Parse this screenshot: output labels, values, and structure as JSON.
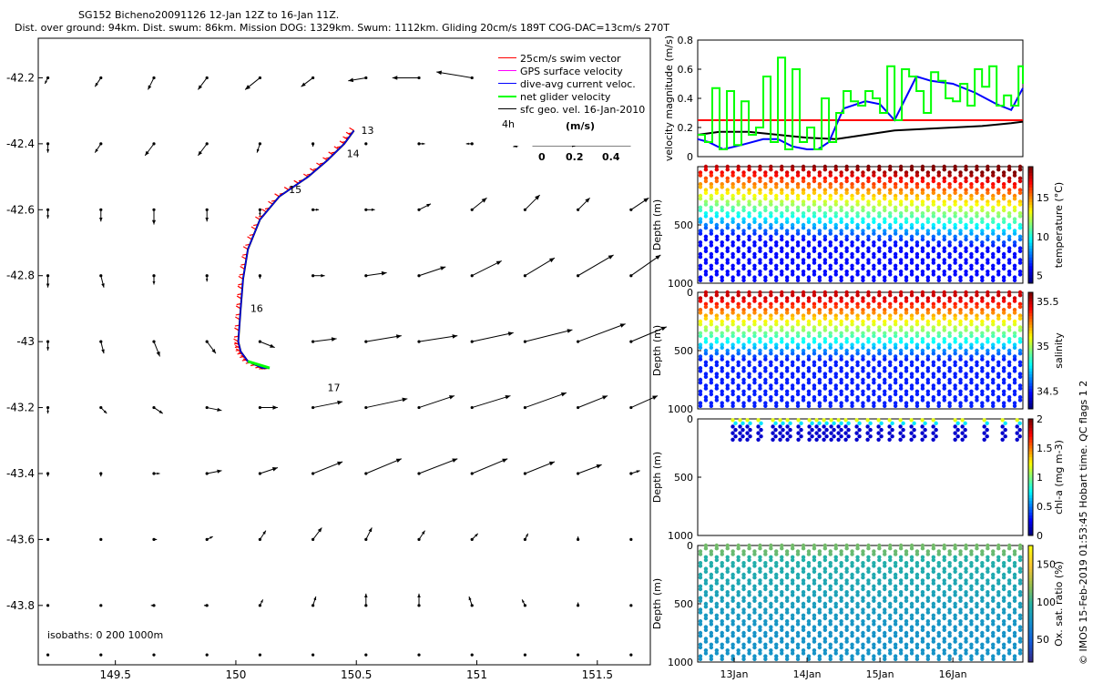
{
  "title_line1": "SG152 Bicheno20091126 12-Jan 12Z to 16-Jan 11Z.",
  "title_line2": "Dist. over ground: 94km. Dist. swum: 86km. Mission DOG: 1329km. Swum: 1112km. Gliding 20cm/s 189T COG-DAC=13cm/s 270T",
  "legend": {
    "items": [
      {
        "label": "25cm/s swim vector",
        "color": "#ff0000"
      },
      {
        "label": "GPS surface velocity",
        "color": "#ff00ff"
      },
      {
        "label": "dive-avg current veloc.",
        "color": "#0000ff"
      },
      {
        "label": "net glider velocity",
        "color": "#00ff00"
      },
      {
        "label": "sfc geo. vel. 16-Jan-2010",
        "color": "#000000"
      }
    ],
    "scale_label": "4h",
    "colorbar_title": "(m/s)",
    "colorbar_ticks": [
      "0",
      "0.2",
      "0.4"
    ]
  },
  "isobaths": "isobaths: 0   200  1000m",
  "watermark": "© IMOS 15-Feb-2019 01:53:45 Hobart time. QC flags 1  2",
  "chart_data": [
    {
      "type": "scatter",
      "name": "map",
      "x_ticks": [
        "149.5",
        "150",
        "150.5",
        "151",
        "151.5"
      ],
      "y_ticks": [
        "-42.2",
        "-42.4",
        "-42.6",
        "-42.8",
        "-43",
        "-43.2",
        "-43.4",
        "-43.6",
        "-43.8"
      ],
      "xlim": [
        149.18,
        151.72
      ],
      "ylim": [
        -43.98,
        -42.08
      ],
      "day_labels": [
        {
          "text": "13",
          "x": 150.52,
          "y": -42.37
        },
        {
          "text": "14",
          "x": 150.46,
          "y": -42.44
        },
        {
          "text": "15",
          "x": 150.22,
          "y": -42.55
        },
        {
          "text": "16",
          "x": 150.06,
          "y": -42.91
        },
        {
          "text": "17",
          "x": 150.38,
          "y": -43.15
        }
      ],
      "track": {
        "lon": [
          150.49,
          150.45,
          150.38,
          150.3,
          150.18,
          150.1,
          150.05,
          150.03,
          150.02,
          150.01,
          150.02,
          150.05,
          150.11,
          150.14
        ],
        "lat": [
          -42.36,
          -42.4,
          -42.45,
          -42.5,
          -42.56,
          -42.63,
          -42.72,
          -42.81,
          -42.9,
          -43.0,
          -43.03,
          -43.06,
          -43.08,
          -43.08
        ]
      },
      "geo_vectors": {
        "lon": [
          149.22,
          149.44,
          149.66,
          149.88,
          150.1,
          150.32,
          150.54,
          150.76,
          150.98,
          151.2,
          151.42,
          151.64
        ],
        "lat": [
          -42.2,
          -42.4,
          -42.6,
          -42.8,
          -43.0,
          -43.2,
          -43.4,
          -43.6,
          -43.8,
          -43.95
        ],
        "u": [
          [
            -0.01,
            -0.02,
            -0.02,
            -0.03,
            -0.05,
            -0.04,
            -0.06,
            -0.09,
            -0.12,
            -0.05,
            -0.01,
            0.0
          ],
          [
            0.0,
            -0.02,
            -0.03,
            -0.03,
            -0.01,
            0.0,
            0.0,
            0.02,
            -0.02,
            -0.04,
            -0.02,
            0.0
          ],
          [
            0.0,
            0.0,
            0.0,
            0.0,
            0.0,
            0.02,
            0.03,
            0.04,
            0.05,
            0.05,
            0.04,
            0.06
          ],
          [
            0.0,
            0.01,
            0.0,
            0.0,
            0.0,
            0.04,
            0.07,
            0.09,
            0.1,
            0.1,
            0.12,
            0.1
          ],
          [
            0.0,
            0.01,
            0.02,
            0.03,
            0.05,
            0.08,
            0.12,
            0.13,
            0.14,
            0.16,
            0.16,
            0.12
          ],
          [
            0.0,
            0.02,
            0.03,
            0.05,
            0.06,
            0.1,
            0.14,
            0.12,
            0.13,
            0.14,
            0.1,
            0.09
          ],
          [
            0.0,
            0.0,
            0.02,
            0.05,
            0.06,
            0.1,
            0.12,
            0.13,
            0.12,
            0.1,
            0.08,
            0.03
          ],
          [
            0.0,
            0.0,
            0.01,
            0.02,
            0.02,
            0.03,
            0.02,
            0.02,
            0.02,
            0.01,
            0.0,
            0.0
          ],
          [
            0.0,
            0.0,
            -0.01,
            -0.01,
            0.01,
            0.01,
            0.0,
            0.0,
            -0.01,
            -0.01,
            0.0,
            0.0
          ],
          [
            0.0,
            0.0,
            0.0,
            0.0,
            0.0,
            0.0,
            0.0,
            0.0,
            0.0,
            0.0,
            0.0,
            0.0
          ]
        ],
        "v": [
          [
            -0.02,
            -0.03,
            -0.04,
            -0.04,
            -0.04,
            -0.03,
            -0.01,
            0.0,
            0.02,
            0.02,
            0.0,
            0.0
          ],
          [
            -0.03,
            -0.03,
            -0.04,
            -0.04,
            -0.03,
            -0.01,
            0.0,
            0.0,
            0.0,
            -0.01,
            -0.01,
            0.0
          ],
          [
            -0.03,
            -0.04,
            -0.05,
            -0.04,
            -0.02,
            0.0,
            0.0,
            0.02,
            0.04,
            0.05,
            0.04,
            0.04
          ],
          [
            -0.04,
            -0.04,
            -0.03,
            -0.02,
            -0.01,
            0.0,
            0.01,
            0.03,
            0.05,
            0.06,
            0.07,
            0.07
          ],
          [
            -0.03,
            -0.04,
            -0.05,
            -0.04,
            -0.02,
            0.01,
            0.02,
            0.02,
            0.03,
            0.04,
            0.06,
            0.05
          ],
          [
            -0.02,
            -0.02,
            -0.02,
            -0.01,
            0.0,
            0.02,
            0.03,
            0.04,
            0.04,
            0.05,
            0.04,
            0.04
          ],
          [
            -0.01,
            -0.01,
            0.0,
            0.01,
            0.02,
            0.04,
            0.05,
            0.05,
            0.05,
            0.04,
            0.03,
            0.01
          ],
          [
            0.0,
            0.0,
            0.0,
            0.01,
            0.03,
            0.04,
            0.04,
            0.03,
            0.02,
            0.02,
            0.01,
            0.0
          ],
          [
            0.0,
            0.0,
            0.0,
            0.0,
            0.02,
            0.03,
            0.04,
            0.04,
            0.03,
            0.02,
            0.01,
            0.0
          ],
          [
            0.0,
            0.0,
            0.0,
            0.0,
            0.0,
            0.0,
            0.0,
            0.0,
            0.0,
            0.0,
            0.0,
            0.0
          ]
        ]
      }
    },
    {
      "type": "line",
      "name": "velocity",
      "ylabel": "velocity magnitude (m/s)",
      "ylim": [
        0,
        0.8
      ],
      "y_ticks": [
        "0",
        "0.2",
        "0.4",
        "0.6",
        "0.8"
      ],
      "xlim": [
        12.5,
        16.96
      ],
      "series": [
        {
          "color": "#ff0000",
          "x": [
            12.5,
            16.96
          ],
          "y": [
            0.25,
            0.25
          ]
        },
        {
          "color": "#000000",
          "x": [
            12.5,
            12.8,
            13.2,
            13.6,
            14.0,
            14.4,
            14.8,
            15.2,
            15.6,
            16.0,
            16.4,
            16.8,
            16.96
          ],
          "y": [
            0.15,
            0.17,
            0.17,
            0.15,
            0.13,
            0.12,
            0.15,
            0.18,
            0.19,
            0.2,
            0.21,
            0.23,
            0.24
          ]
        },
        {
          "color": "#0000ff",
          "x": [
            12.5,
            12.65,
            12.85,
            13.1,
            13.4,
            13.6,
            13.8,
            14.0,
            14.15,
            14.3,
            14.5,
            14.8,
            15.0,
            15.2,
            15.35,
            15.5,
            15.7,
            16.0,
            16.3,
            16.6,
            16.8,
            16.96
          ],
          "y": [
            0.12,
            0.1,
            0.05,
            0.08,
            0.12,
            0.12,
            0.07,
            0.05,
            0.05,
            0.1,
            0.33,
            0.38,
            0.36,
            0.25,
            0.4,
            0.55,
            0.52,
            0.5,
            0.44,
            0.36,
            0.32,
            0.47
          ]
        },
        {
          "color": "#00ff00",
          "x": [
            12.5,
            12.6,
            12.7,
            12.8,
            12.9,
            13.0,
            13.1,
            13.2,
            13.3,
            13.4,
            13.5,
            13.6,
            13.7,
            13.8,
            13.9,
            14.0,
            14.1,
            14.2,
            14.3,
            14.4,
            14.5,
            14.6,
            14.7,
            14.8,
            14.9,
            15.0,
            15.1,
            15.2,
            15.3,
            15.4,
            15.5,
            15.6,
            15.7,
            15.8,
            15.9,
            16.0,
            16.1,
            16.2,
            16.3,
            16.4,
            16.5,
            16.6,
            16.7,
            16.8,
            16.9,
            16.96
          ],
          "y": [
            0.15,
            0.1,
            0.47,
            0.05,
            0.45,
            0.08,
            0.38,
            0.15,
            0.2,
            0.55,
            0.1,
            0.68,
            0.05,
            0.6,
            0.1,
            0.2,
            0.05,
            0.4,
            0.1,
            0.3,
            0.45,
            0.38,
            0.35,
            0.45,
            0.4,
            0.3,
            0.62,
            0.25,
            0.6,
            0.55,
            0.45,
            0.3,
            0.58,
            0.52,
            0.4,
            0.38,
            0.5,
            0.35,
            0.6,
            0.48,
            0.62,
            0.35,
            0.42,
            0.35,
            0.62,
            0.5
          ]
        }
      ]
    },
    {
      "type": "scatter",
      "name": "temperature",
      "ylabel": "Depth (m)",
      "colorbar_label": "temperature (°C)",
      "colorbar_ticks": [
        "5",
        "10",
        "15"
      ],
      "clim": [
        4,
        19
      ],
      "ylim": [
        0,
        1000
      ],
      "y_ticks": [
        "500",
        "1000"
      ],
      "profiles": 30,
      "surface_value": 18,
      "deep_value": 6
    },
    {
      "type": "scatter",
      "name": "salinity",
      "ylabel": "Depth (m)",
      "colorbar_label": "salinity",
      "colorbar_ticks": [
        "34.5",
        "35",
        "35.5"
      ],
      "clim": [
        34.3,
        35.6
      ],
      "ylim": [
        0,
        1000
      ],
      "y_ticks": [
        "0",
        "500",
        "1000"
      ],
      "profiles": 30,
      "surface_value": 35.5,
      "deep_value": 34.5
    },
    {
      "type": "scatter",
      "name": "chlorophyll",
      "ylabel": "Depth (m)",
      "colorbar_label": "chl-a (mg m-3)",
      "colorbar_ticks": [
        "0",
        "0.5",
        "1",
        "1.5",
        "2"
      ],
      "clim": [
        0,
        2
      ],
      "ylim": [
        0,
        1000
      ],
      "y_ticks": [
        "0",
        "500",
        "1000"
      ],
      "max_depth": 200
    },
    {
      "type": "scatter",
      "name": "oxygen",
      "ylabel": "Depth (m)",
      "colorbar_label": "Ox. sat. ratio (%)",
      "colorbar_ticks": [
        "50",
        "100",
        "150"
      ],
      "clim": [
        20,
        175
      ],
      "ylim": [
        0,
        1000
      ],
      "y_ticks": [
        "0",
        "500",
        "1000"
      ],
      "profiles": 30,
      "surface_value": 100,
      "deep_value": 75
    }
  ],
  "time_axis": {
    "ticks": [
      "13Jan",
      "14Jan",
      "15Jan",
      "16Jan"
    ],
    "positions": [
      13,
      14,
      15,
      16
    ],
    "range": [
      12.5,
      16.96
    ]
  }
}
